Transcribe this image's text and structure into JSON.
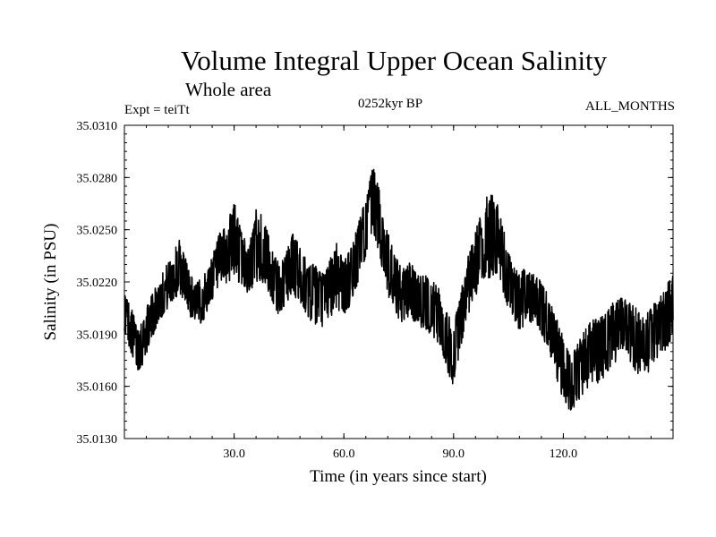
{
  "header": {
    "title": "Volume Integral Upper Ocean Salinity",
    "subtitle": "Whole area",
    "experiment": "Expt = teiTt",
    "period": "0252kyr BP",
    "months": "ALL_MONTHS"
  },
  "chart_data": {
    "type": "line",
    "title": "Volume Integral Upper Ocean Salinity",
    "xlabel": "Time (in years since start)",
    "ylabel": "Salinity (in PSU)",
    "xlim": [
      0,
      150
    ],
    "ylim": [
      35.013,
      35.031
    ],
    "xticks": [
      30,
      60,
      90,
      120
    ],
    "xtick_labels": [
      "30.0",
      "60.0",
      "90.0",
      "120.0"
    ],
    "yticks": [
      35.013,
      35.016,
      35.019,
      35.022,
      35.025,
      35.028,
      35.031
    ],
    "ytick_labels": [
      "35.0130",
      "35.0160",
      "35.0190",
      "35.0220",
      "35.0250",
      "35.0280",
      "35.0310"
    ],
    "grid": false,
    "series": [
      {
        "name": "Salinity",
        "note": "Dense monthly series; envelope of the noisy signal sampled along time",
        "x": [
          0,
          2,
          3.5,
          5,
          7,
          9,
          11,
          13,
          15,
          16.5,
          18,
          20,
          22,
          24,
          26,
          28,
          30,
          32,
          34,
          36,
          38,
          40,
          42,
          44,
          46,
          48,
          50,
          52,
          54,
          56,
          58,
          60,
          62,
          64,
          66,
          68,
          70,
          72,
          74,
          76,
          78,
          80,
          82,
          84,
          86,
          88,
          90,
          92,
          94,
          96,
          98,
          100,
          102,
          104,
          106,
          108,
          110,
          112,
          114,
          116,
          118,
          120,
          122,
          124,
          126,
          128,
          130,
          132,
          134,
          136,
          138,
          140,
          142,
          144,
          146,
          148,
          150
        ],
        "low": [
          35.0192,
          35.0178,
          35.0168,
          35.0172,
          35.0185,
          35.0195,
          35.0202,
          35.0208,
          35.0212,
          35.021,
          35.02,
          35.0195,
          35.0198,
          35.021,
          35.0215,
          35.0218,
          35.0222,
          35.0218,
          35.0212,
          35.022,
          35.0218,
          35.021,
          35.02,
          35.0205,
          35.0212,
          35.0208,
          35.02,
          35.0195,
          35.0193,
          35.0198,
          35.0205,
          35.02,
          35.0208,
          35.022,
          35.0235,
          35.0248,
          35.0232,
          35.0212,
          35.02,
          35.0195,
          35.02,
          35.0195,
          35.0192,
          35.019,
          35.0184,
          35.017,
          35.016,
          35.0182,
          35.02,
          35.0212,
          35.0218,
          35.0222,
          35.0225,
          35.021,
          35.0195,
          35.0193,
          35.0195,
          35.0192,
          35.019,
          35.018,
          35.0165,
          35.0152,
          35.0145,
          35.015,
          35.0158,
          35.016,
          35.0162,
          35.0168,
          35.0173,
          35.018,
          35.0175,
          35.0168,
          35.0165,
          35.017,
          35.0175,
          35.018,
          35.019
        ],
        "high": [
          35.0215,
          35.0205,
          35.0195,
          35.02,
          35.021,
          35.022,
          35.0228,
          35.0235,
          35.0245,
          35.0236,
          35.0225,
          35.022,
          35.0225,
          35.0235,
          35.0248,
          35.0252,
          35.0268,
          35.025,
          35.024,
          35.0262,
          35.0258,
          35.0242,
          35.0232,
          35.0235,
          35.025,
          35.024,
          35.0232,
          35.023,
          35.0225,
          35.0232,
          35.0245,
          35.0233,
          35.024,
          35.0255,
          35.0268,
          35.0287,
          35.0272,
          35.025,
          35.0235,
          35.0228,
          35.0232,
          35.0226,
          35.0224,
          35.0222,
          35.0216,
          35.0205,
          35.0195,
          35.0215,
          35.0235,
          35.025,
          35.0262,
          35.0275,
          35.0265,
          35.0248,
          35.023,
          35.0226,
          35.0228,
          35.0225,
          35.0222,
          35.0212,
          35.02,
          35.0188,
          35.0178,
          35.0185,
          35.0195,
          35.0198,
          35.02,
          35.0205,
          35.021,
          35.0212,
          35.0208,
          35.0205,
          35.02,
          35.0205,
          35.0212,
          35.0215,
          35.023
        ]
      }
    ]
  }
}
